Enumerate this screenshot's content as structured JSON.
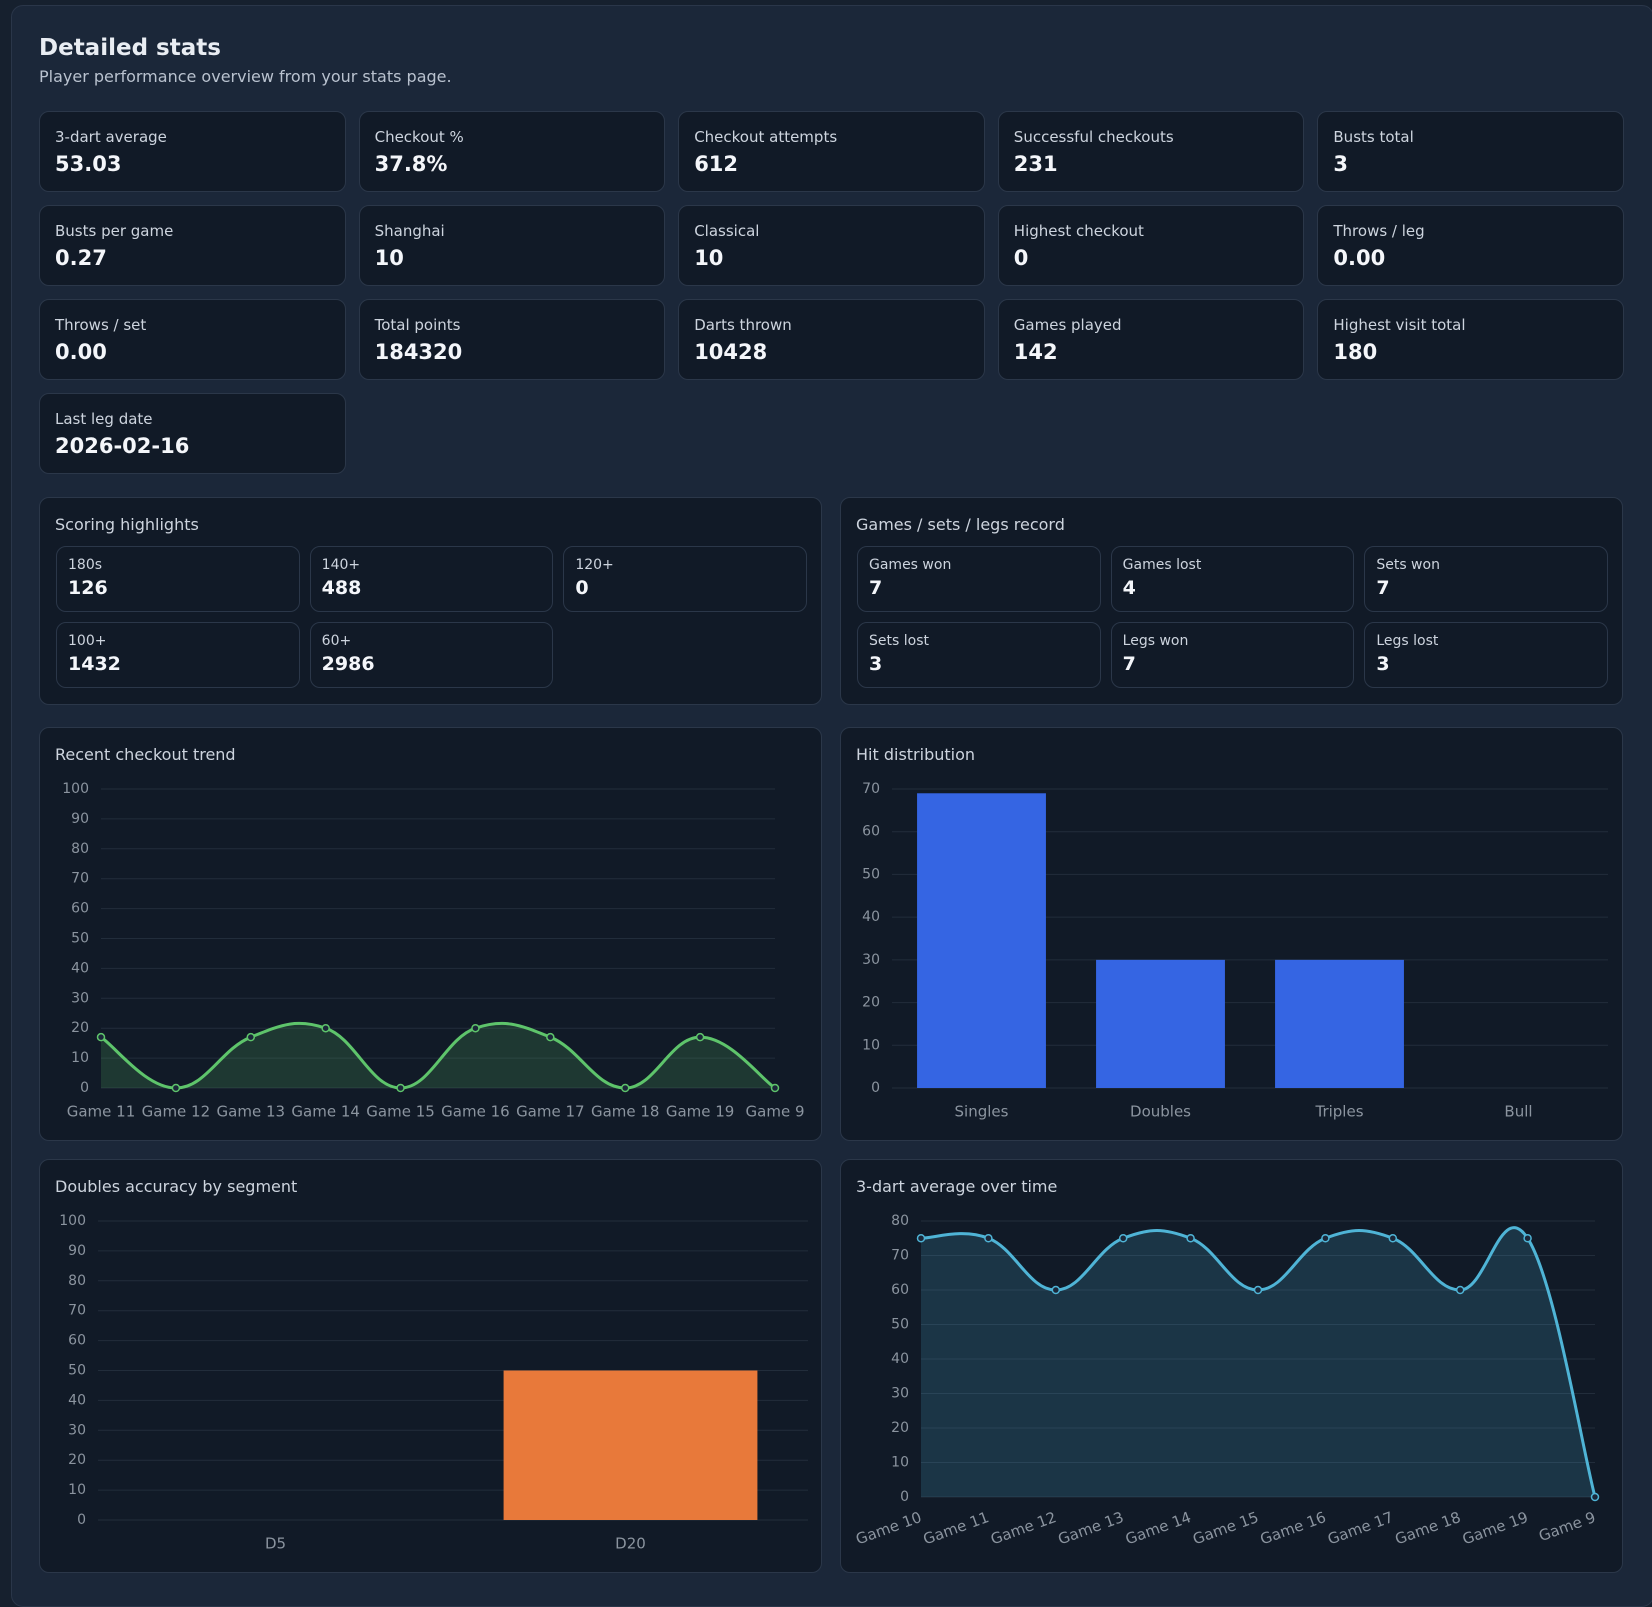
{
  "header": {
    "title": "Detailed stats",
    "subtitle": "Player performance overview from your stats page."
  },
  "stats": [
    {
      "label": "3-dart average",
      "value": "53.03"
    },
    {
      "label": "Checkout %",
      "value": "37.8%"
    },
    {
      "label": "Checkout attempts",
      "value": "612"
    },
    {
      "label": "Successful checkouts",
      "value": "231"
    },
    {
      "label": "Busts total",
      "value": "3"
    },
    {
      "label": "Busts per game",
      "value": "0.27"
    },
    {
      "label": "Shanghai",
      "value": "10"
    },
    {
      "label": "Classical",
      "value": "10"
    },
    {
      "label": "Highest checkout",
      "value": "0"
    },
    {
      "label": "Throws / leg",
      "value": "0.00"
    },
    {
      "label": "Throws / set",
      "value": "0.00"
    },
    {
      "label": "Total points",
      "value": "184320"
    },
    {
      "label": "Darts thrown",
      "value": "10428"
    },
    {
      "label": "Games played",
      "value": "142"
    },
    {
      "label": "Highest visit total",
      "value": "180"
    },
    {
      "label": "Last leg date",
      "value": "2026-02-16"
    }
  ],
  "scoring": {
    "title": "Scoring highlights",
    "items": [
      {
        "label": "180s",
        "value": "126"
      },
      {
        "label": "140+",
        "value": "488"
      },
      {
        "label": "120+",
        "value": "0"
      },
      {
        "label": "100+",
        "value": "1432"
      },
      {
        "label": "60+",
        "value": "2986"
      }
    ]
  },
  "record": {
    "title": "Games / sets / legs record",
    "items": [
      {
        "label": "Games won",
        "value": "7"
      },
      {
        "label": "Games lost",
        "value": "4"
      },
      {
        "label": "Sets won",
        "value": "7"
      },
      {
        "label": "Sets lost",
        "value": "3"
      },
      {
        "label": "Legs won",
        "value": "7"
      },
      {
        "label": "Legs lost",
        "value": "3"
      }
    ]
  },
  "chart_data": [
    {
      "type": "line",
      "title": "Recent checkout trend",
      "categories": [
        "Game 11",
        "Game 12",
        "Game 13",
        "Game 14",
        "Game 15",
        "Game 16",
        "Game 17",
        "Game 18",
        "Game 19",
        "Game 9"
      ],
      "values": [
        17,
        0,
        17,
        20,
        0,
        20,
        17,
        0,
        17,
        0
      ],
      "color": "#5ec46b",
      "ylim": [
        0,
        100
      ],
      "yticks": [
        0,
        10,
        20,
        30,
        40,
        50,
        60,
        70,
        80,
        90,
        100
      ],
      "grid": true
    },
    {
      "type": "bar",
      "title": "Hit distribution",
      "categories": [
        "Singles",
        "Doubles",
        "Triples",
        "Bull"
      ],
      "values": [
        69,
        30,
        30,
        0
      ],
      "color": "#3565e3",
      "ylim": [
        0,
        70
      ],
      "yticks": [
        0,
        10,
        20,
        30,
        40,
        50,
        60,
        70
      ],
      "grid": true
    },
    {
      "type": "bar",
      "title": "Doubles accuracy by segment",
      "categories": [
        "D5",
        "D20"
      ],
      "values": [
        0,
        50
      ],
      "color": "#e8793a",
      "ylim": [
        0,
        100
      ],
      "yticks": [
        0,
        10,
        20,
        30,
        40,
        50,
        60,
        70,
        80,
        90,
        100
      ],
      "grid": true
    },
    {
      "type": "line",
      "title": "3-dart average over time",
      "categories": [
        "Game 10",
        "Game 11",
        "Game 12",
        "Game 13",
        "Game 14",
        "Game 15",
        "Game 16",
        "Game 17",
        "Game 18",
        "Game 19",
        "Game 9"
      ],
      "values": [
        75,
        75,
        60,
        75,
        75,
        60,
        75,
        75,
        60,
        75,
        0
      ],
      "color": "#4fb4d6",
      "ylim": [
        0,
        80
      ],
      "yticks": [
        0,
        10,
        20,
        30,
        40,
        50,
        60,
        70,
        80
      ],
      "grid": true
    }
  ]
}
